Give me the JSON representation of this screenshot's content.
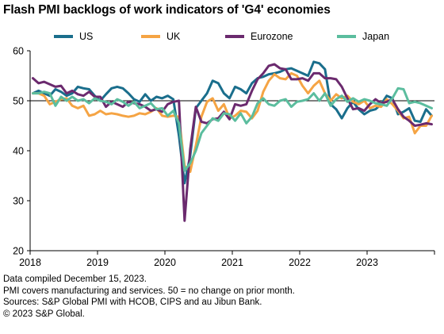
{
  "chart_data": {
    "type": "line",
    "title": "Flash PMI backlogs of work indicators of 'G4' economies",
    "xlabel": "",
    "ylabel": "",
    "ylim": [
      20,
      60
    ],
    "yticks": [
      20,
      30,
      40,
      50,
      60
    ],
    "xlim": [
      "2018-01",
      "2023-12"
    ],
    "xticks": [
      "2018",
      "2019",
      "2020",
      "2021",
      "2022",
      "2023"
    ],
    "grid": false,
    "reference_line": 50,
    "legend_position": "top",
    "months": [
      "2018-01",
      "2018-02",
      "2018-03",
      "2018-04",
      "2018-05",
      "2018-06",
      "2018-07",
      "2018-08",
      "2018-09",
      "2018-10",
      "2018-11",
      "2018-12",
      "2019-01",
      "2019-02",
      "2019-03",
      "2019-04",
      "2019-05",
      "2019-06",
      "2019-07",
      "2019-08",
      "2019-09",
      "2019-10",
      "2019-11",
      "2019-12",
      "2020-01",
      "2020-02",
      "2020-03",
      "2020-04",
      "2020-05",
      "2020-06",
      "2020-07",
      "2020-08",
      "2020-09",
      "2020-10",
      "2020-11",
      "2020-12",
      "2021-01",
      "2021-02",
      "2021-03",
      "2021-04",
      "2021-05",
      "2021-06",
      "2021-07",
      "2021-08",
      "2021-09",
      "2021-10",
      "2021-11",
      "2021-12",
      "2022-01",
      "2022-02",
      "2022-03",
      "2022-04",
      "2022-05",
      "2022-06",
      "2022-07",
      "2022-08",
      "2022-09",
      "2022-10",
      "2022-11",
      "2022-12",
      "2023-01",
      "2023-02",
      "2023-03",
      "2023-04",
      "2023-05",
      "2023-06",
      "2023-07",
      "2023-08",
      "2023-09",
      "2023-10",
      "2023-11",
      "2023-12"
    ],
    "series": [
      {
        "name": "US",
        "color": "#1a6e8c",
        "values": [
          51.5,
          52.0,
          51.5,
          51.0,
          52.3,
          51.8,
          51.0,
          51.5,
          52.8,
          52.5,
          52.3,
          51.0,
          50.0,
          51.3,
          52.5,
          52.8,
          52.5,
          51.5,
          50.3,
          49.8,
          51.3,
          50.0,
          50.8,
          50.5,
          51.0,
          50.3,
          43.0,
          33.5,
          39.0,
          48.5,
          50.0,
          51.5,
          54.0,
          53.5,
          51.5,
          50.5,
          52.8,
          52.3,
          51.5,
          53.5,
          54.5,
          54.8,
          55.3,
          55.5,
          55.8,
          56.3,
          56.5,
          56.0,
          55.5,
          55.0,
          57.8,
          57.5,
          56.3,
          49.3,
          48.3,
          46.5,
          48.5,
          49.8,
          48.3,
          47.3,
          48.0,
          48.3,
          49.3,
          51.0,
          50.5,
          47.3,
          47.8,
          48.5,
          46.0,
          45.8,
          48.3,
          47.0
        ]
      },
      {
        "name": "UK",
        "color": "#f5a444",
        "values": [
          51.5,
          51.5,
          51.0,
          49.3,
          49.8,
          50.3,
          50.5,
          49.0,
          48.5,
          49.0,
          47.0,
          47.3,
          48.0,
          47.3,
          47.5,
          47.3,
          47.0,
          46.8,
          47.0,
          47.5,
          47.3,
          47.8,
          48.5,
          47.0,
          46.8,
          47.0,
          46.8,
          37.0,
          35.8,
          41.0,
          46.8,
          49.8,
          50.5,
          48.0,
          49.3,
          46.5,
          47.0,
          48.0,
          47.8,
          46.5,
          48.0,
          51.8,
          54.0,
          55.3,
          54.5,
          54.3,
          55.5,
          55.0,
          53.0,
          51.5,
          53.0,
          54.0,
          51.5,
          50.0,
          51.3,
          50.5,
          51.0,
          49.8,
          49.3,
          50.0,
          48.5,
          49.0,
          48.8,
          50.3,
          49.3,
          48.0,
          46.5,
          46.8,
          43.5,
          45.0,
          45.0,
          47.0
        ]
      },
      {
        "name": "Eurozone",
        "color": "#6b2a6e",
        "values": [
          54.5,
          53.5,
          53.8,
          53.3,
          52.8,
          53.0,
          51.5,
          52.0,
          51.3,
          51.0,
          51.8,
          50.8,
          50.8,
          48.8,
          49.8,
          49.3,
          48.8,
          49.8,
          49.5,
          49.3,
          48.8,
          48.0,
          48.3,
          47.8,
          49.3,
          49.8,
          50.0,
          26.0,
          40.3,
          48.8,
          45.8,
          45.5,
          46.3,
          46.5,
          47.8,
          46.3,
          49.3,
          49.0,
          49.3,
          52.0,
          54.3,
          55.5,
          57.0,
          57.3,
          56.5,
          56.3,
          54.3,
          54.3,
          54.5,
          54.0,
          55.5,
          55.5,
          54.5,
          54.5,
          54.3,
          52.8,
          50.5,
          48.3,
          48.5,
          48.0,
          49.3,
          50.3,
          49.5,
          49.8,
          50.3,
          48.3,
          46.8,
          46.0,
          45.0,
          45.2,
          45.5,
          45.3
        ]
      },
      {
        "name": "Japan",
        "color": "#5bbd9e",
        "values": [
          51.5,
          51.5,
          51.8,
          51.5,
          49.0,
          50.8,
          50.0,
          50.8,
          50.0,
          50.3,
          49.5,
          50.5,
          50.0,
          49.8,
          49.3,
          50.3,
          49.8,
          49.0,
          49.8,
          48.5,
          49.0,
          49.5,
          48.3,
          48.5,
          47.0,
          48.0,
          45.5,
          36.0,
          37.5,
          40.0,
          43.5,
          45.0,
          46.5,
          46.0,
          47.5,
          47.3,
          46.0,
          47.5,
          45.5,
          46.8,
          49.5,
          50.5,
          49.3,
          49.0,
          50.0,
          50.3,
          48.8,
          49.8,
          50.0,
          50.3,
          51.5,
          50.0,
          51.5,
          49.0,
          50.3,
          51.0,
          49.8,
          50.5,
          49.8,
          50.3,
          50.0,
          49.5,
          49.3,
          49.0,
          50.5,
          52.5,
          52.3,
          49.5,
          49.8,
          49.5,
          49.0,
          48.5
        ]
      }
    ]
  },
  "notes": [
    "Data compiled December 15, 2023.",
    "PMI covers manufacturing and services. 50 = no change on prior month.",
    "Sources: S&P Global PMI with HCOB, CIPS and au Jibun Bank.",
    "© 2023 S&P Global."
  ]
}
